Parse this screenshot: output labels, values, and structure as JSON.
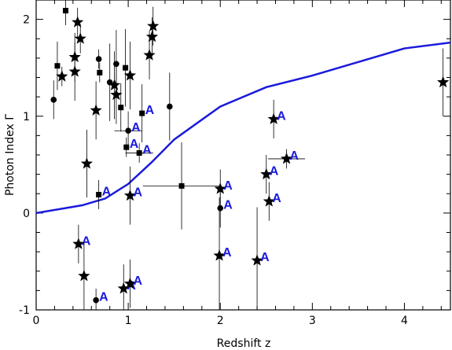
{
  "chart_data": {
    "type": "scatter",
    "title": "",
    "xlabel": "Redshift z",
    "ylabel": "Photon Index Γ",
    "xlim": [
      0,
      4.5
    ],
    "ylim": [
      -1,
      2.2
    ],
    "xticks": [
      0,
      1,
      2,
      3,
      4
    ],
    "yticks": [
      -1,
      0,
      1,
      2
    ],
    "grid": false,
    "line_color": "#1a1adc",
    "series": [
      {
        "marker": "star",
        "points": [
          {
            "x": 0.45,
            "y": 1.97,
            "yerr": 0.15
          },
          {
            "x": 0.48,
            "y": 1.8,
            "yerr": 0.15
          },
          {
            "x": 0.42,
            "y": 1.61,
            "yerr": 0.25
          },
          {
            "x": 0.42,
            "y": 1.46,
            "yerr": 0.3
          },
          {
            "x": 0.28,
            "y": 1.41,
            "yerr": 0.1
          },
          {
            "x": 0.65,
            "y": 1.06,
            "yerr": 0.3
          },
          {
            "x": 0.55,
            "y": 0.51,
            "yerr": 0.35
          },
          {
            "x": 0.85,
            "y": 1.32,
            "yerr": 0.35
          },
          {
            "x": 0.87,
            "y": 1.22,
            "yerr": 0.3
          },
          {
            "x": 1.02,
            "y": 1.42,
            "yerr": 0.35
          },
          {
            "x": 1.27,
            "y": 1.93,
            "yerr": 0.2
          },
          {
            "x": 1.26,
            "y": 1.82,
            "yerr": 0.2
          },
          {
            "x": 1.23,
            "y": 1.63,
            "yerr": 0.25
          },
          {
            "x": 1.02,
            "y": 0.18,
            "yerr": 0.3,
            "label": "A"
          },
          {
            "x": 0.46,
            "y": -0.32,
            "yerr": 0.2,
            "label": "A"
          },
          {
            "x": 0.52,
            "y": -0.65,
            "yerr": 0.35
          },
          {
            "x": 0.95,
            "y": -0.78,
            "yerr": 0.25,
            "label": "A"
          },
          {
            "x": 1.02,
            "y": -0.73,
            "yerr": 0.25,
            "label": "A"
          },
          {
            "x": 2.0,
            "y": 0.25,
            "yerr": 0.2,
            "label": "A"
          },
          {
            "x": 1.99,
            "y": -0.44,
            "yerr": 0.6,
            "label": "A"
          },
          {
            "x": 2.4,
            "y": -0.49,
            "yerr": 0.55,
            "label": "A"
          },
          {
            "x": 2.5,
            "y": 0.4,
            "yerr": 0.2,
            "label": "A"
          },
          {
            "x": 2.53,
            "y": 0.12,
            "yerr": 0.2,
            "label": "A"
          },
          {
            "x": 2.58,
            "y": 0.97,
            "yerr": 0.2,
            "label": "A"
          },
          {
            "x": 2.72,
            "y": 0.56,
            "xerr": 0.2,
            "yerr": 0.1,
            "label": "A"
          },
          {
            "x": 4.42,
            "y": 1.35,
            "yerr": 0.35
          }
        ]
      },
      {
        "marker": "square",
        "points": [
          {
            "x": 0.32,
            "y": 2.09,
            "yerr": 0.15
          },
          {
            "x": 0.23,
            "y": 1.52,
            "yerr": 0.25
          },
          {
            "x": 0.69,
            "y": 1.45,
            "yerr": 0.1
          },
          {
            "x": 0.97,
            "y": 1.5,
            "yerr": 0.4
          },
          {
            "x": 0.92,
            "y": 1.09,
            "yerr": 0.25
          },
          {
            "x": 1.15,
            "y": 1.03,
            "yerr": 0.3,
            "label": "A"
          },
          {
            "x": 0.98,
            "y": 0.68,
            "yerr": 0.1,
            "label": "A"
          },
          {
            "x": 1.12,
            "y": 0.62,
            "xerr": 0.15,
            "yerr": 0.1,
            "label": "A"
          },
          {
            "x": 0.68,
            "y": 0.19,
            "yerr": 0.15,
            "label": "A"
          },
          {
            "x": 1.58,
            "y": 0.28,
            "xerr": 0.42,
            "yerr": 0.45
          }
        ]
      },
      {
        "marker": "circle",
        "points": [
          {
            "x": 0.19,
            "y": 1.17,
            "yerr": 0.2
          },
          {
            "x": 0.68,
            "y": 1.59,
            "yerr": 0.1
          },
          {
            "x": 0.8,
            "y": 1.35,
            "yerr": 0.4
          },
          {
            "x": 0.87,
            "y": 1.54,
            "yerr": 0.35
          },
          {
            "x": 1.45,
            "y": 1.1,
            "yerr": 0.35
          },
          {
            "x": 1.0,
            "y": 0.85,
            "xerr": 0.15,
            "yerr": 0.2,
            "label": "A"
          },
          {
            "x": 2.0,
            "y": 0.05,
            "yerr": 0.2,
            "label": "A"
          },
          {
            "x": 0.65,
            "y": -0.9,
            "yerr": 0.12,
            "label": "A"
          }
        ]
      }
    ],
    "curve": {
      "x": [
        0,
        0.5,
        0.75,
        1.0,
        1.25,
        1.5,
        2.0,
        2.5,
        3.0,
        3.5,
        4.0,
        4.5
      ],
      "y": [
        0,
        0.08,
        0.15,
        0.3,
        0.52,
        0.76,
        1.1,
        1.3,
        1.42,
        1.56,
        1.7,
        1.76
      ]
    }
  }
}
